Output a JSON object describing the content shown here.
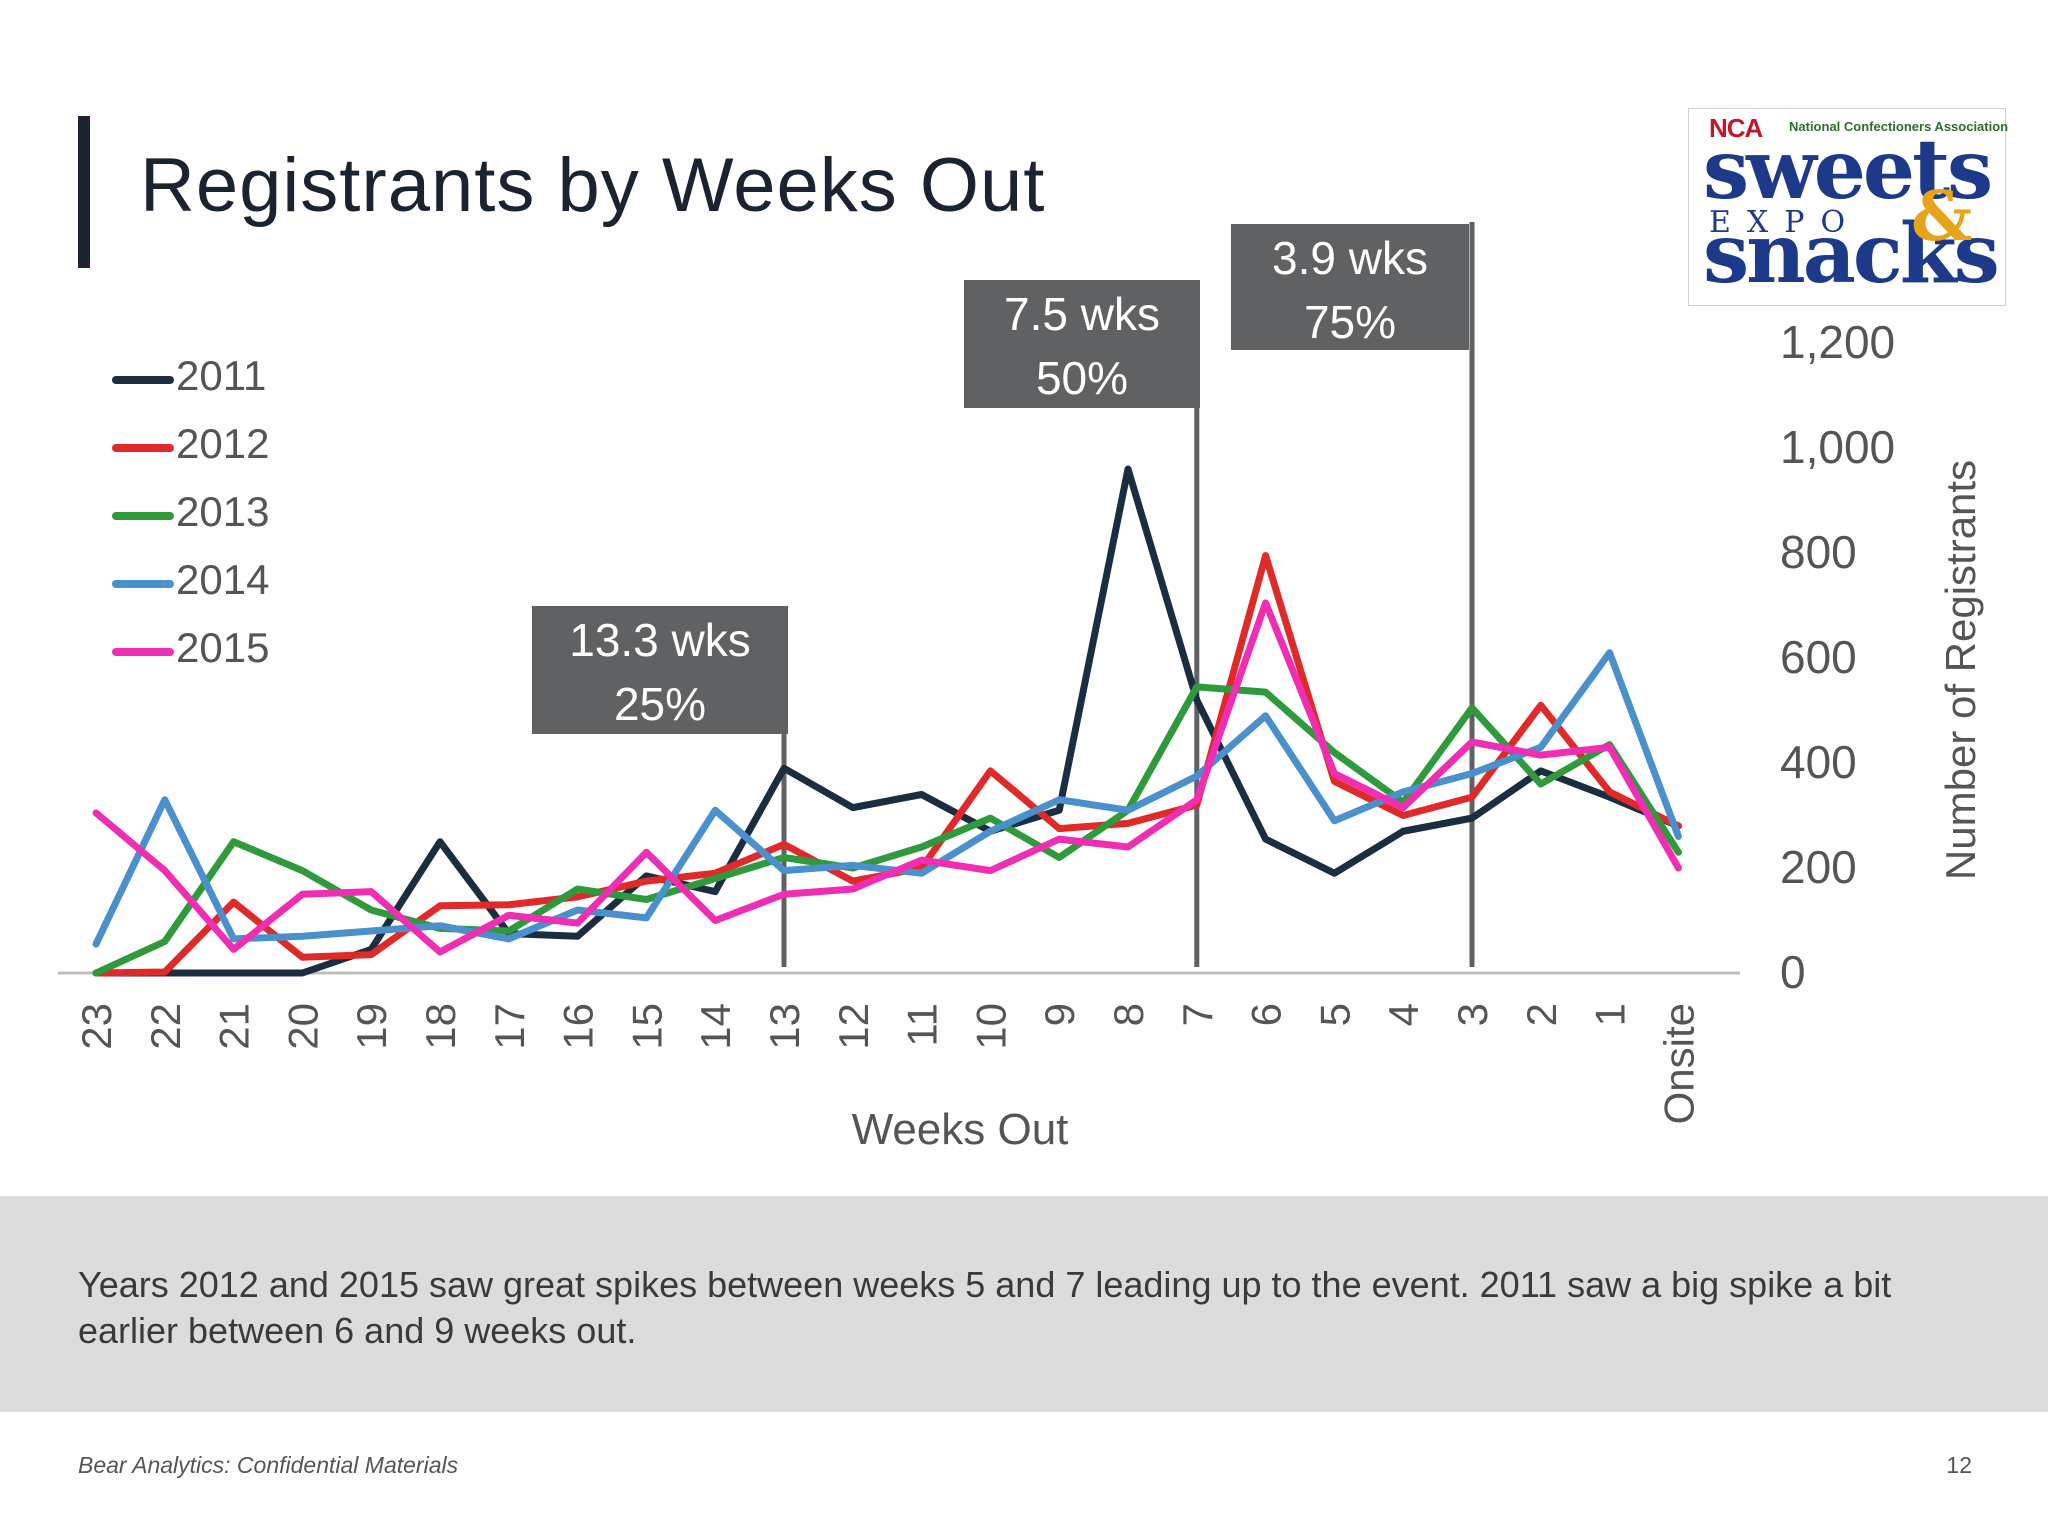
{
  "slide": {
    "title": "Registrants by Weeks Out",
    "summary": "Years 2012 and 2015 saw great spikes between weeks 5 and 7 leading up to the event. 2011 saw a big spike a bit earlier between 6 and 9 weeks out.",
    "footer_left": "Bear Analytics: Confidential Materials",
    "page_number": "12"
  },
  "logo": {
    "org": "NCA",
    "org_full": "National Confectioners Association",
    "line1": "sweets",
    "line2": "EXPO",
    "line3": "snacks",
    "amp": "&"
  },
  "callouts": [
    {
      "weeks_out": 13.0,
      "label_line1": "13.3 wks",
      "label_line2": "25%"
    },
    {
      "weeks_out": 7.0,
      "label_line1": "7.5 wks",
      "label_line2": "50%"
    },
    {
      "weeks_out": 3.0,
      "label_line1": "3.9 wks",
      "label_line2": "75%"
    }
  ],
  "chart_data": {
    "type": "line",
    "xlabel": "Weeks Out",
    "ylabel": "Number of Registrants",
    "ylim": [
      0,
      1200
    ],
    "yticks": [
      0,
      200,
      400,
      600,
      800,
      1000,
      1200
    ],
    "ytick_labels": [
      "0",
      "200",
      "400",
      "600",
      "800",
      "1,000",
      "1,200"
    ],
    "y_axis_side": "right",
    "legend_position": "left",
    "categories": [
      "23",
      "22",
      "21",
      "20",
      "19",
      "18",
      "17",
      "16",
      "15",
      "14",
      "13",
      "12",
      "11",
      "10",
      "9",
      "8",
      "7",
      "6",
      "5",
      "4",
      "3",
      "2",
      "1",
      "Onsite"
    ],
    "series": [
      {
        "name": "2011",
        "color": "#1b2d40",
        "values": [
          0,
          0,
          0,
          0,
          45,
          250,
          75,
          70,
          185,
          155,
          390,
          315,
          340,
          270,
          310,
          960,
          520,
          255,
          190,
          270,
          295,
          385,
          335,
          280
        ]
      },
      {
        "name": "2012",
        "color": "#e02a2a",
        "values": [
          0,
          2,
          135,
          30,
          35,
          128,
          130,
          145,
          175,
          190,
          245,
          175,
          200,
          385,
          275,
          285,
          320,
          795,
          365,
          300,
          335,
          510,
          345,
          280
        ]
      },
      {
        "name": "2013",
        "color": "#2e9a3c",
        "values": [
          0,
          60,
          250,
          195,
          120,
          85,
          80,
          160,
          140,
          180,
          220,
          200,
          240,
          295,
          220,
          310,
          545,
          535,
          420,
          325,
          505,
          360,
          435,
          230
        ]
      },
      {
        "name": "2014",
        "color": "#4a90cc",
        "values": [
          55,
          330,
          65,
          70,
          80,
          90,
          65,
          120,
          105,
          310,
          195,
          205,
          190,
          270,
          330,
          310,
          375,
          490,
          290,
          345,
          380,
          430,
          610,
          260
        ]
      },
      {
        "name": "2015",
        "color": "#f02eb4",
        "values": [
          305,
          195,
          45,
          150,
          155,
          40,
          110,
          95,
          230,
          100,
          150,
          160,
          215,
          195,
          255,
          240,
          330,
          705,
          380,
          315,
          440,
          415,
          430,
          200
        ]
      }
    ]
  }
}
